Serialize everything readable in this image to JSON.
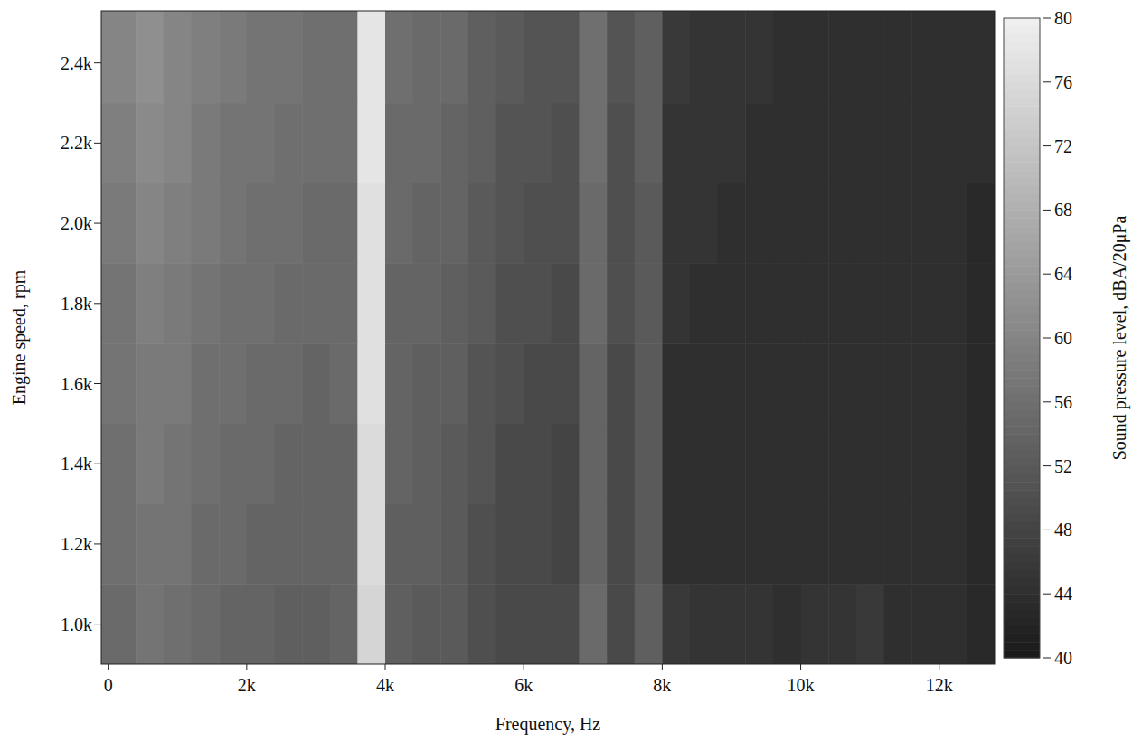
{
  "chart_data": {
    "type": "heatmap",
    "x_label": "Frequency, Hz",
    "y_label": "Engine speed, rpm",
    "colorbar_label": "Sound pressure level, dBA/20μPa",
    "xlim": [
      -100,
      12800
    ],
    "ylim": [
      900,
      2530
    ],
    "xticks": [
      {
        "value": 0,
        "label": "0"
      },
      {
        "value": 2000,
        "label": "2k"
      },
      {
        "value": 4000,
        "label": "4k"
      },
      {
        "value": 6000,
        "label": "6k"
      },
      {
        "value": 8000,
        "label": "8k"
      },
      {
        "value": 10000,
        "label": "10k"
      },
      {
        "value": 12000,
        "label": "12k"
      }
    ],
    "yticks": [
      {
        "value": 1000,
        "label": "1.0k"
      },
      {
        "value": 1200,
        "label": "1.2k"
      },
      {
        "value": 1400,
        "label": "1.4k"
      },
      {
        "value": 1600,
        "label": "1.6k"
      },
      {
        "value": 1800,
        "label": "1.8k"
      },
      {
        "value": 2000,
        "label": "2.0k"
      },
      {
        "value": 2200,
        "label": "2.2k"
      },
      {
        "value": 2400,
        "label": "2.4k"
      }
    ],
    "x_edges": [
      -100,
      400,
      800,
      1200,
      1600,
      2000,
      2400,
      2800,
      3200,
      3600,
      4000,
      4400,
      4800,
      5200,
      5600,
      6000,
      6400,
      6800,
      7200,
      7600,
      8000,
      8400,
      8800,
      9200,
      9600,
      10000,
      10400,
      10800,
      11200,
      11600,
      12000,
      12400,
      12800
    ],
    "y_edges": [
      900,
      1100,
      1300,
      1500,
      1700,
      1900,
      2100,
      2300,
      2530
    ],
    "cells": [
      [
        55,
        57,
        56,
        55,
        54,
        54,
        53,
        53,
        54,
        75,
        53,
        52,
        52,
        50,
        49,
        49,
        49,
        55,
        49,
        53,
        46,
        45,
        45,
        45,
        44,
        45,
        45,
        46,
        44,
        44,
        44,
        43
      ],
      [
        56,
        57,
        57,
        55,
        55,
        54,
        54,
        54,
        54,
        76,
        53,
        53,
        52,
        50,
        49,
        49,
        48,
        54,
        49,
        52,
        44,
        44,
        44,
        44,
        44,
        44,
        44,
        44,
        44,
        44,
        44,
        43
      ],
      [
        56,
        58,
        57,
        56,
        55,
        55,
        54,
        54,
        54,
        76,
        54,
        53,
        52,
        51,
        49,
        49,
        48,
        54,
        49,
        52,
        44,
        44,
        44,
        44,
        44,
        44,
        44,
        44,
        44,
        44,
        44,
        43
      ],
      [
        57,
        58,
        58,
        56,
        56,
        55,
        55,
        54,
        55,
        77,
        54,
        53,
        53,
        51,
        50,
        49,
        49,
        54,
        49,
        52,
        44,
        44,
        44,
        44,
        44,
        44,
        44,
        44,
        44,
        44,
        44,
        43
      ],
      [
        57,
        59,
        58,
        57,
        56,
        56,
        55,
        55,
        55,
        77,
        54,
        54,
        53,
        52,
        50,
        50,
        49,
        55,
        50,
        52,
        45,
        44,
        44,
        44,
        44,
        44,
        44,
        44,
        44,
        44,
        44,
        43
      ],
      [
        58,
        60,
        59,
        58,
        57,
        56,
        56,
        55,
        55,
        77,
        55,
        54,
        54,
        52,
        51,
        50,
        50,
        55,
        50,
        52,
        45,
        45,
        44,
        44,
        44,
        44,
        44,
        44,
        44,
        44,
        44,
        43
      ],
      [
        59,
        61,
        60,
        58,
        57,
        57,
        56,
        56,
        56,
        78,
        55,
        55,
        54,
        53,
        51,
        51,
        50,
        56,
        50,
        53,
        45,
        45,
        45,
        44,
        44,
        44,
        44,
        44,
        44,
        44,
        44,
        44
      ],
      [
        60,
        62,
        60,
        59,
        58,
        57,
        57,
        56,
        56,
        78,
        56,
        55,
        55,
        53,
        52,
        51,
        51,
        56,
        51,
        53,
        46,
        45,
        45,
        45,
        44,
        44,
        44,
        44,
        44,
        44,
        44,
        44
      ]
    ],
    "color_range": [
      40,
      80
    ],
    "color_ticks": [
      40,
      44,
      48,
      52,
      56,
      60,
      64,
      68,
      72,
      76,
      80
    ]
  }
}
